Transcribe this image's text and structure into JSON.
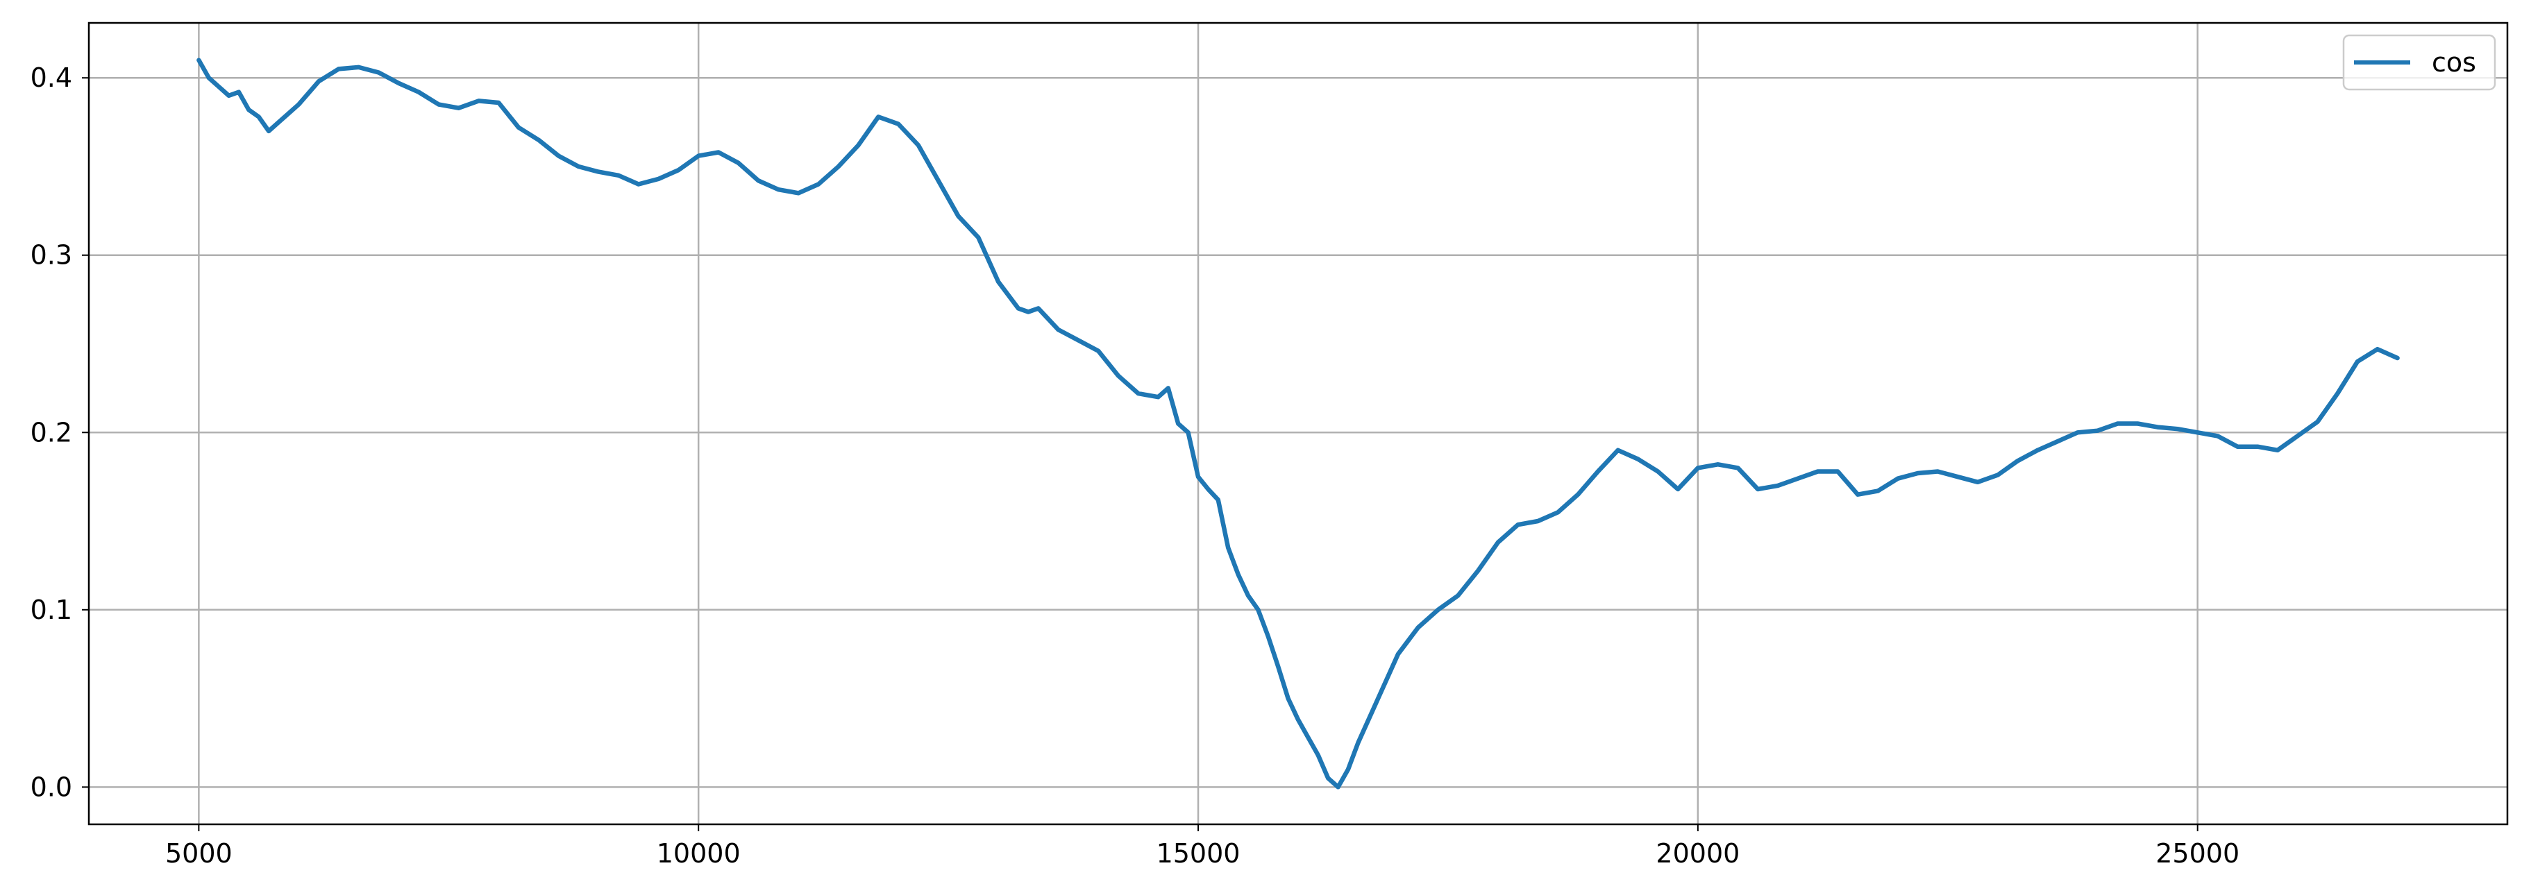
{
  "chart_data": {
    "type": "line",
    "title": "",
    "xlabel": "",
    "ylabel": "",
    "xlim": [
      3900,
      28100
    ],
    "ylim": [
      -0.021,
      0.431
    ],
    "x_ticks": [
      5000,
      10000,
      15000,
      20000,
      25000
    ],
    "x_tick_labels": [
      "5000",
      "10000",
      "15000",
      "20000",
      "25000"
    ],
    "y_ticks": [
      0.0,
      0.1,
      0.2,
      0.3,
      0.4
    ],
    "y_tick_labels": [
      "0.0",
      "0.1",
      "0.2",
      "0.3",
      "0.4"
    ],
    "grid": true,
    "legend": {
      "position": "top-right",
      "entries": [
        "cos"
      ]
    },
    "series": [
      {
        "name": "cos",
        "color": "#1f77b4",
        "x": [
          5000,
          5100,
          5200,
          5300,
          5400,
          5500,
          5600,
          5700,
          5800,
          5900,
          6000,
          6200,
          6400,
          6600,
          6800,
          7000,
          7200,
          7400,
          7600,
          7800,
          8000,
          8200,
          8400,
          8600,
          8800,
          9000,
          9200,
          9400,
          9600,
          9800,
          10000,
          10200,
          10400,
          10600,
          10800,
          11000,
          11200,
          11400,
          11600,
          11800,
          12000,
          12200,
          12400,
          12600,
          12800,
          13000,
          13200,
          13300,
          13400,
          13600,
          13800,
          14000,
          14200,
          14400,
          14600,
          14700,
          14800,
          14900,
          15000,
          15100,
          15200,
          15300,
          15400,
          15500,
          15600,
          15700,
          15800,
          15900,
          16000,
          16100,
          16200,
          16300,
          16400,
          16500,
          16600,
          16800,
          17000,
          17200,
          17400,
          17600,
          17800,
          18000,
          18200,
          18400,
          18600,
          18800,
          19000,
          19200,
          19400,
          19600,
          19800,
          20000,
          20200,
          20400,
          20600,
          20800,
          21000,
          21200,
          21400,
          21600,
          21800,
          22000,
          22200,
          22400,
          22600,
          22800,
          23000,
          23200,
          23400,
          23600,
          23800,
          24000,
          24200,
          24400,
          24600,
          24800,
          25000,
          25200,
          25400,
          25600,
          25800,
          26000,
          26200,
          26400,
          26600,
          26800,
          27000
        ],
        "values": [
          0.41,
          0.4,
          0.395,
          0.39,
          0.392,
          0.382,
          0.378,
          0.37,
          0.375,
          0.38,
          0.385,
          0.398,
          0.405,
          0.406,
          0.403,
          0.397,
          0.392,
          0.385,
          0.383,
          0.387,
          0.386,
          0.372,
          0.365,
          0.356,
          0.35,
          0.347,
          0.345,
          0.34,
          0.343,
          0.348,
          0.356,
          0.358,
          0.352,
          0.342,
          0.337,
          0.335,
          0.34,
          0.35,
          0.362,
          0.378,
          0.374,
          0.362,
          0.342,
          0.322,
          0.31,
          0.285,
          0.27,
          0.268,
          0.27,
          0.258,
          0.252,
          0.246,
          0.232,
          0.222,
          0.22,
          0.225,
          0.205,
          0.2,
          0.175,
          0.168,
          0.162,
          0.135,
          0.12,
          0.108,
          0.1,
          0.085,
          0.068,
          0.05,
          0.038,
          0.028,
          0.018,
          0.005,
          0.0,
          0.01,
          0.025,
          0.05,
          0.075,
          0.09,
          0.1,
          0.108,
          0.122,
          0.138,
          0.148,
          0.15,
          0.155,
          0.165,
          0.178,
          0.19,
          0.185,
          0.178,
          0.168,
          0.18,
          0.182,
          0.18,
          0.168,
          0.17,
          0.174,
          0.178,
          0.178,
          0.165,
          0.167,
          0.174,
          0.177,
          0.178,
          0.175,
          0.172,
          0.176,
          0.184,
          0.19,
          0.195,
          0.2,
          0.201,
          0.205,
          0.205,
          0.203,
          0.202,
          0.2,
          0.198,
          0.192,
          0.192,
          0.19,
          0.198,
          0.206,
          0.222,
          0.24,
          0.247,
          0.242
        ]
      }
    ]
  }
}
